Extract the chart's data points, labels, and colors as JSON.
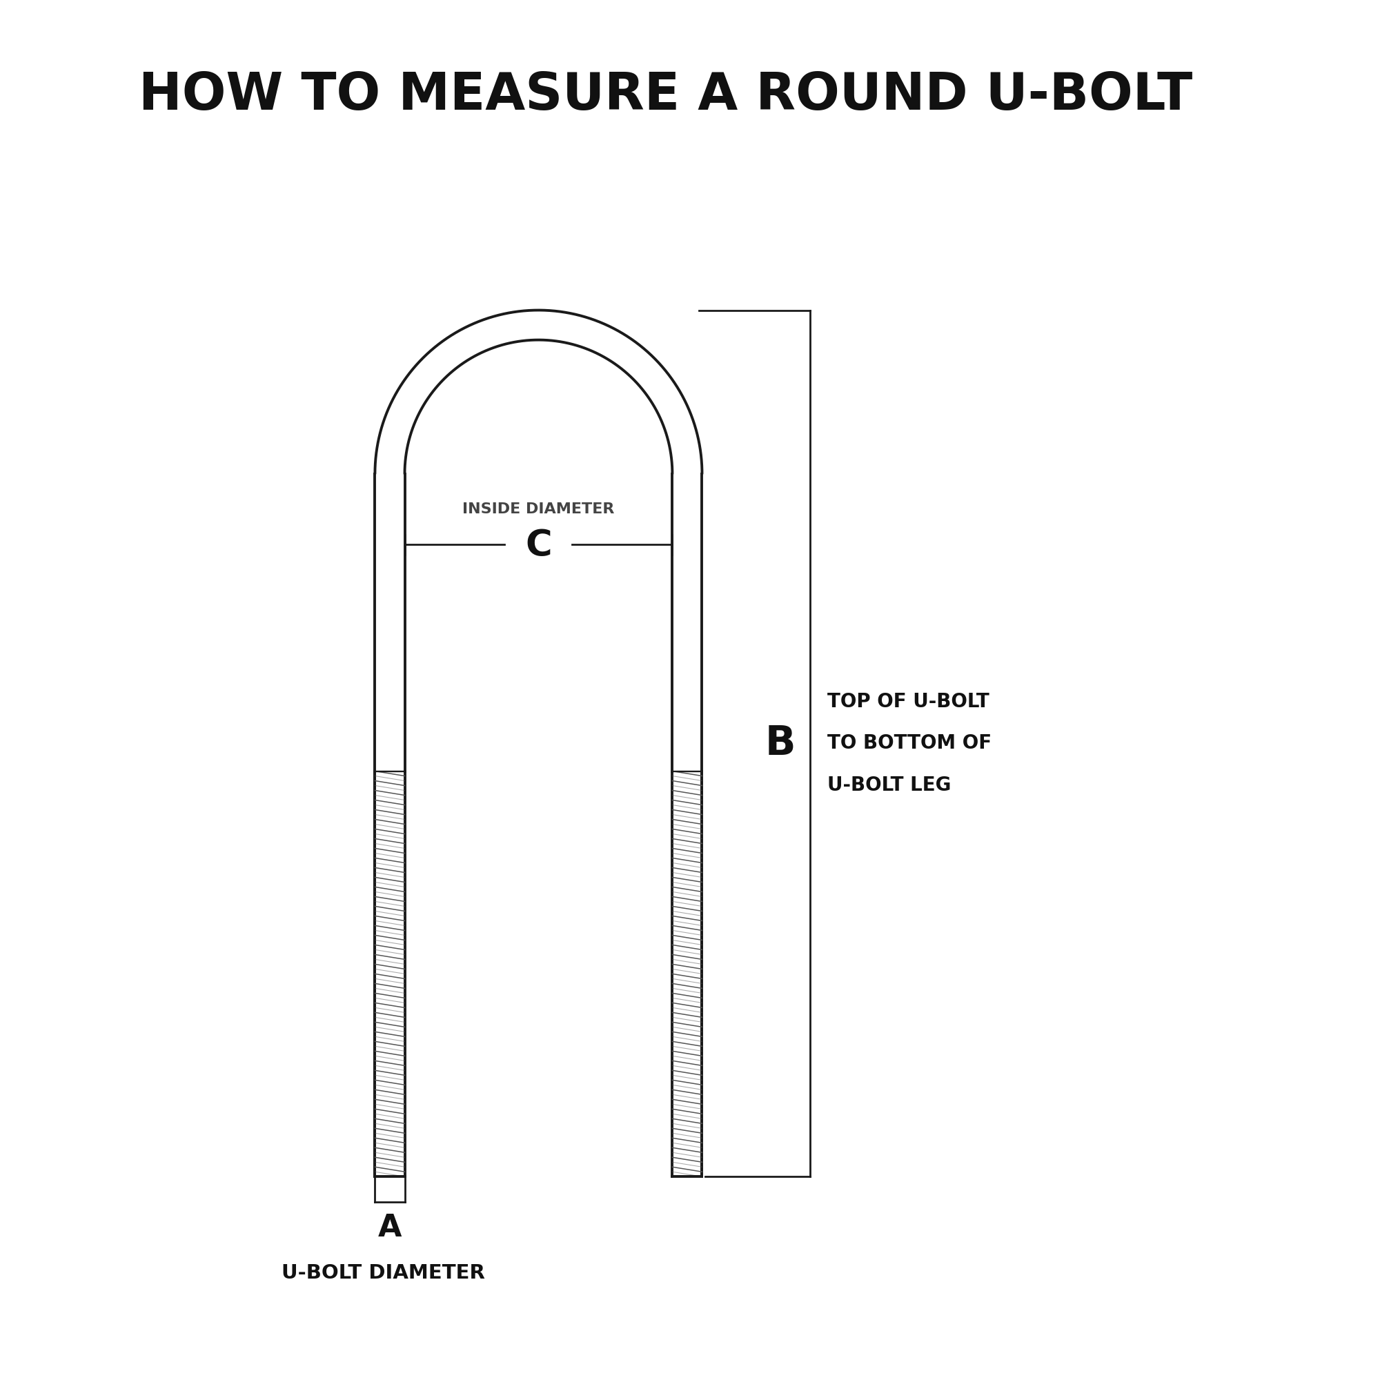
{
  "title": "HOW TO MEASURE A ROUND U-BOLT",
  "title_fontsize": 54,
  "title_fontweight": "black",
  "bg_color": "#ffffff",
  "bolt_color": "#1a1a1a",
  "dim_line_color": "#1a1a1a",
  "label_color_dark": "#111111",
  "thread_color": "#555555",
  "inside_diameter_label": "INSIDE DIAMETER",
  "c_label": "C",
  "b_label": "B",
  "a_label": "A",
  "b_desc_line1": "TOP OF U-BOLT",
  "b_desc_line2": "TO BOTTOM OF",
  "b_desc_line3": "U-BOLT LEG",
  "a_desc": "U-BOLT DIAMETER",
  "bolt_lw": 2.8,
  "thread_lw": 1.1,
  "dim_lw": 2.0
}
